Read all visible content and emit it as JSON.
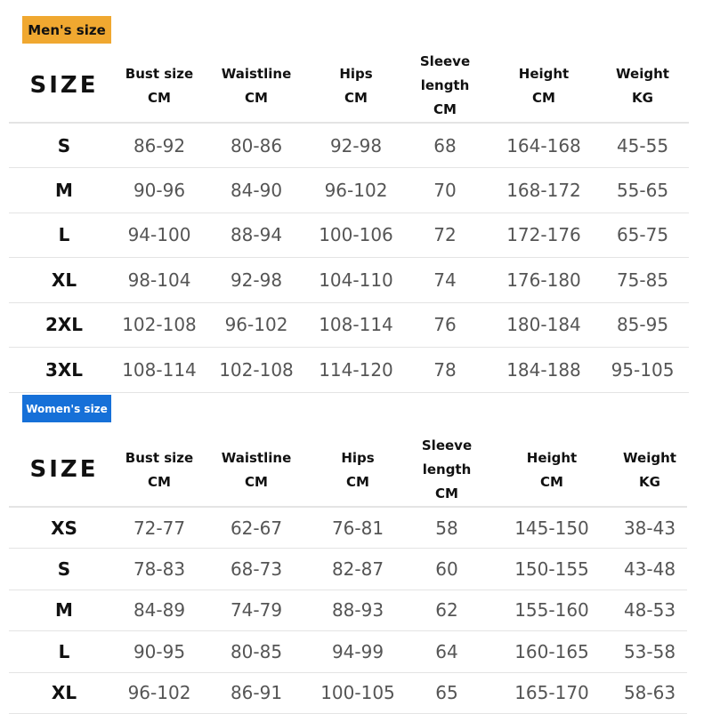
{
  "mens": {
    "badge": "Men's size",
    "headers": [
      {
        "label": "SIZE",
        "unit": ""
      },
      {
        "label": "Bust size",
        "unit": "CM"
      },
      {
        "label": "Waistline",
        "unit": "CM"
      },
      {
        "label": "Hips",
        "unit": "CM"
      },
      {
        "label": "Sleeve length",
        "unit": "CM"
      },
      {
        "label": "Height",
        "unit": "CM"
      },
      {
        "label": "Weight",
        "unit": "KG"
      }
    ],
    "rows": [
      [
        "S",
        "86-92",
        "80-86",
        "92-98",
        "68",
        "164-168",
        "45-55"
      ],
      [
        "M",
        "90-96",
        "84-90",
        "96-102",
        "70",
        "168-172",
        "55-65"
      ],
      [
        "L",
        "94-100",
        "88-94",
        "100-106",
        "72",
        "172-176",
        "65-75"
      ],
      [
        "XL",
        "98-104",
        "92-98",
        "104-110",
        "74",
        "176-180",
        "75-85"
      ],
      [
        "2XL",
        "102-108",
        "96-102",
        "108-114",
        "76",
        "180-184",
        "85-95"
      ],
      [
        "3XL",
        "108-114",
        "102-108",
        "114-120",
        "78",
        "184-188",
        "95-105"
      ]
    ],
    "badge_color": "#f0a830"
  },
  "womens": {
    "badge": "Women's size",
    "headers": [
      {
        "label": "SIZE",
        "unit": ""
      },
      {
        "label": "Bust size",
        "unit": "CM"
      },
      {
        "label": "Waistline",
        "unit": "CM"
      },
      {
        "label": "Hips",
        "unit": "CM"
      },
      {
        "label": "Sleeve length",
        "unit": "CM"
      },
      {
        "label": "Height",
        "unit": "CM"
      },
      {
        "label": "Weight",
        "unit": "KG"
      }
    ],
    "rows": [
      [
        "XS",
        "72-77",
        "62-67",
        "76-81",
        "58",
        "145-150",
        "38-43"
      ],
      [
        "S",
        "78-83",
        "68-73",
        "82-87",
        "60",
        "150-155",
        "43-48"
      ],
      [
        "M",
        "84-89",
        "74-79",
        "88-93",
        "62",
        "155-160",
        "48-53"
      ],
      [
        "L",
        "90-95",
        "80-85",
        "94-99",
        "64",
        "160-165",
        "53-58"
      ],
      [
        "XL",
        "96-102",
        "86-91",
        "100-105",
        "65",
        "165-170",
        "58-63"
      ]
    ],
    "badge_color": "#1670d8"
  }
}
